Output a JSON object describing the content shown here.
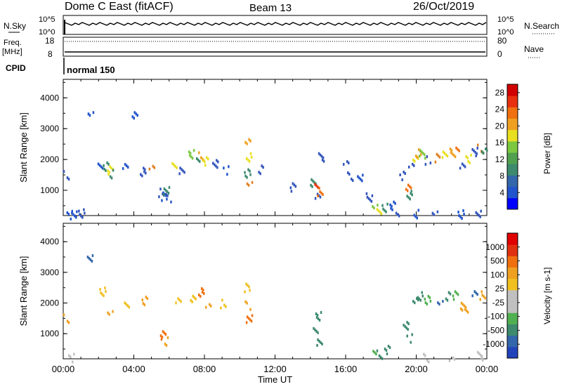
{
  "header": {
    "station": "Dome C East (fitACF)",
    "beam": "Beam 13",
    "date": "26/Oct/2019"
  },
  "top_panels": {
    "nsky": {
      "label": "N.Sky",
      "left_top": "10^5",
      "left_bottom": "10^0"
    },
    "nsearch": {
      "label": "N.Search",
      "right_top": "10^5",
      "right_bottom": "10^0"
    },
    "freq": {
      "label_line1": "Freq.",
      "label_line2": "[MHz]",
      "left_top": "18",
      "left_bottom": "8"
    },
    "nave": {
      "label": "Nave",
      "right_top": "80",
      "right_bottom": "0"
    },
    "cpid": {
      "label": "CPID",
      "mode": "normal 150"
    }
  },
  "chart_data": [
    {
      "type": "heatmap",
      "name": "power-panel",
      "ylabel": "Slant Range [km]",
      "xlabel": "",
      "ylim": [
        180,
        4600
      ],
      "yticks": [
        1000,
        2000,
        3000,
        4000
      ],
      "xlim": [
        0,
        24
      ],
      "colorbar": {
        "label": "Power [dB]",
        "ticks": [
          "4",
          "8",
          "12",
          "16",
          "20",
          "24",
          "28"
        ],
        "colors": [
          "#0000ff",
          "#2255cc",
          "#3366aa",
          "#3d8a6e",
          "#50a050",
          "#7cc840",
          "#e8e020",
          "#f0a020",
          "#f07010",
          "#e83010",
          "#d00000"
        ]
      },
      "cells": [
        [
          0.15,
          1520,
          "#3355bb"
        ],
        [
          0.3,
          250,
          "#2255cc"
        ],
        [
          0.6,
          260,
          "#2255cc"
        ],
        [
          1.0,
          280,
          "#3355bb"
        ],
        [
          1.5,
          3500,
          "#2255cc"
        ],
        [
          2.1,
          1900,
          "#2255cc"
        ],
        [
          2.4,
          1800,
          "#3d8a6e"
        ],
        [
          2.6,
          1700,
          "#e8e020"
        ],
        [
          2.7,
          1580,
          "#3d8a6e"
        ],
        [
          3.5,
          1750,
          "#2255cc"
        ],
        [
          4.0,
          3500,
          "#2255cc"
        ],
        [
          4.5,
          1650,
          "#3355bb"
        ],
        [
          5.0,
          1780,
          "#e08020"
        ],
        [
          5.5,
          950,
          "#3355bb"
        ],
        [
          5.7,
          850,
          "#2255cc"
        ],
        [
          5.8,
          1000,
          "#3d8a6e"
        ],
        [
          5.9,
          780,
          "#3355bb"
        ],
        [
          6.3,
          1800,
          "#e8e020"
        ],
        [
          6.7,
          1720,
          "#3355bb"
        ],
        [
          7.2,
          2200,
          "#7cc840"
        ],
        [
          7.6,
          2050,
          "#3d8a6e"
        ],
        [
          7.8,
          2150,
          "#f0a020"
        ],
        [
          8.0,
          1970,
          "#e8e020"
        ],
        [
          8.6,
          1900,
          "#3355bb"
        ],
        [
          9.2,
          1700,
          "#2255cc"
        ],
        [
          10.4,
          2600,
          "#f0a020"
        ],
        [
          10.5,
          2100,
          "#e8e020"
        ],
        [
          10.4,
          1600,
          "#3d8a6e"
        ],
        [
          10.5,
          1300,
          "#e08020"
        ],
        [
          11.2,
          1700,
          "#3355bb"
        ],
        [
          13.0,
          1150,
          "#3355bb"
        ],
        [
          14.1,
          1300,
          "#3d8a6e"
        ],
        [
          14.3,
          1100,
          "#e83010"
        ],
        [
          14.4,
          850,
          "#3355bb"
        ],
        [
          14.5,
          1000,
          "#f07010"
        ],
        [
          14.6,
          2100,
          "#3355bb"
        ],
        [
          16.0,
          2000,
          "#3355bb"
        ],
        [
          16.2,
          1500,
          "#3355bb"
        ],
        [
          16.8,
          1400,
          "#2255cc"
        ],
        [
          17.3,
          800,
          "#3355bb"
        ],
        [
          17.6,
          450,
          "#7cc840"
        ],
        [
          17.9,
          380,
          "#e8e020"
        ],
        [
          18.2,
          460,
          "#3d8a6e"
        ],
        [
          18.6,
          550,
          "#2255cc"
        ],
        [
          18.9,
          350,
          "#3355bb"
        ],
        [
          19.2,
          1500,
          "#3355bb"
        ],
        [
          19.5,
          1100,
          "#f07010"
        ],
        [
          19.6,
          900,
          "#3d8a6e"
        ],
        [
          19.7,
          1800,
          "#3355bb"
        ],
        [
          19.9,
          2100,
          "#e8e020"
        ],
        [
          20.1,
          2250,
          "#f0a020"
        ],
        [
          20.3,
          2200,
          "#7cc840"
        ],
        [
          20.6,
          2000,
          "#3355bb"
        ],
        [
          21.2,
          2100,
          "#e08020"
        ],
        [
          21.6,
          2200,
          "#e8e020"
        ],
        [
          22.0,
          2250,
          "#f0a020"
        ],
        [
          22.3,
          2350,
          "#f07010"
        ],
        [
          22.6,
          1900,
          "#3355bb"
        ],
        [
          22.9,
          2050,
          "#e8e020"
        ],
        [
          23.3,
          2300,
          "#3355bb"
        ],
        [
          23.6,
          2400,
          "#e08020"
        ],
        [
          23.8,
          2250,
          "#3d8a6e"
        ],
        [
          23.5,
          300,
          "#3355bb"
        ],
        [
          22.5,
          270,
          "#2255cc"
        ],
        [
          21.0,
          300,
          "#3355bb"
        ],
        [
          20.0,
          260,
          "#2255cc"
        ]
      ]
    },
    {
      "type": "heatmap",
      "name": "velocity-panel",
      "ylabel": "Slant Range [km]",
      "xlabel": "Time UT",
      "ylim": [
        180,
        4600
      ],
      "yticks": [
        1000,
        2000,
        3000,
        4000
      ],
      "xlim": [
        0,
        24
      ],
      "xticks": [
        "00:00",
        "04:00",
        "08:00",
        "12:00",
        "16:00",
        "20:00",
        "00:00"
      ],
      "colorbar": {
        "label": "Velocity [m s-1]",
        "ticks": [
          "1000",
          "500",
          "100",
          "25",
          "-25",
          "-100",
          "-500",
          "-1000"
        ],
        "colors": [
          "#2244bb",
          "#3366aa",
          "#3d8a6e",
          "#50b050",
          "#c0c0c0",
          "#c0c0c0",
          "#f0c020",
          "#f0a020",
          "#f07010",
          "#e03010",
          "#e00000"
        ]
      },
      "cells": [
        [
          0.15,
          1520,
          "#f0a020"
        ],
        [
          0.4,
          260,
          "#c0c0c0"
        ],
        [
          1.5,
          3500,
          "#3366aa"
        ],
        [
          2.2,
          2400,
          "#f0c020"
        ],
        [
          2.6,
          1700,
          "#f0a020"
        ],
        [
          3.6,
          2050,
          "#f0c020"
        ],
        [
          4.6,
          2100,
          "#f0a020"
        ],
        [
          5.6,
          1000,
          "#f07010"
        ],
        [
          5.8,
          800,
          "#f0a020"
        ],
        [
          6.5,
          2050,
          "#f0c020"
        ],
        [
          7.3,
          2200,
          "#f0c020"
        ],
        [
          7.8,
          2400,
          "#f07010"
        ],
        [
          8.2,
          1950,
          "#f0a020"
        ],
        [
          9.0,
          2000,
          "#f0c020"
        ],
        [
          10.4,
          2550,
          "#f0c020"
        ],
        [
          10.5,
          1500,
          "#f07010"
        ],
        [
          10.4,
          1950,
          "#f0a020"
        ],
        [
          14.3,
          1100,
          "#3d8a6e"
        ],
        [
          14.5,
          800,
          "#3d8a6e"
        ],
        [
          14.4,
          1600,
          "#3d8a6e"
        ],
        [
          17.6,
          450,
          "#50b050"
        ],
        [
          17.9,
          370,
          "#3d8a6e"
        ],
        [
          18.3,
          500,
          "#3d8a6e"
        ],
        [
          19.4,
          1300,
          "#3d8a6e"
        ],
        [
          19.6,
          900,
          "#3d8a6e"
        ],
        [
          19.9,
          2100,
          "#3d8a6e"
        ],
        [
          20.2,
          2250,
          "#3d8a6e"
        ],
        [
          20.6,
          2150,
          "#50b050"
        ],
        [
          21.3,
          2100,
          "#3366aa"
        ],
        [
          21.8,
          2250,
          "#3d8a6e"
        ],
        [
          22.2,
          2300,
          "#50b050"
        ],
        [
          22.6,
          1950,
          "#f0a020"
        ],
        [
          22.8,
          1700,
          "#f0a020"
        ],
        [
          23.3,
          2350,
          "#3366aa"
        ],
        [
          23.7,
          2300,
          "#f0a020"
        ],
        [
          23.6,
          300,
          "#c0c0c0"
        ],
        [
          22.0,
          280,
          "#c0c0c0"
        ],
        [
          20.5,
          260,
          "#c0c0c0"
        ]
      ]
    }
  ]
}
